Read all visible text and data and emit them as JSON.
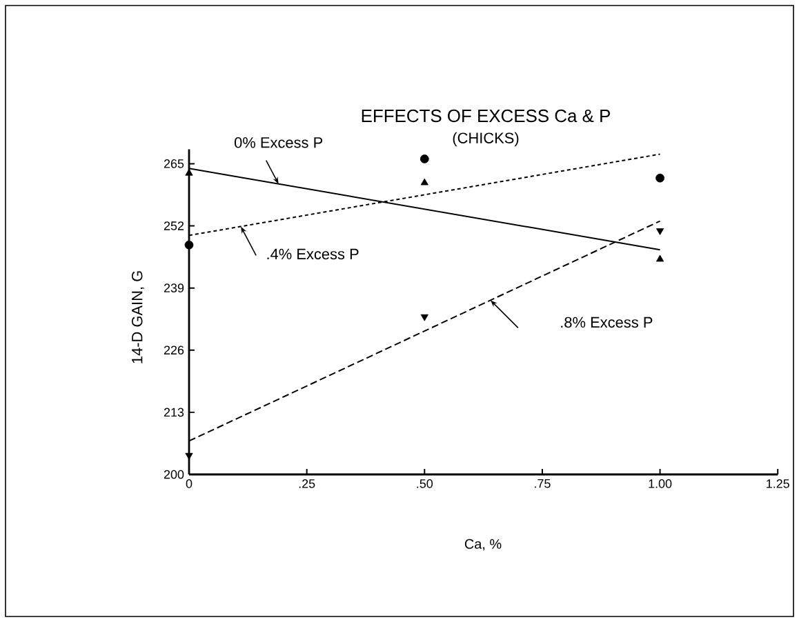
{
  "chart_data": {
    "type": "scatter",
    "title": "EFFECTS OF EXCESS Ca & P",
    "subtitle": "(CHICKS)",
    "xlabel": "Ca, %",
    "ylabel": "14-D GAIN, G",
    "xlim": [
      0,
      1.25
    ],
    "ylim": [
      200,
      268
    ],
    "xticks": [
      0,
      {
        "value": 0.25,
        "label": ".25"
      },
      {
        "value": 0.5,
        "label": ".50"
      },
      {
        "value": 0.75,
        "label": ".75"
      },
      {
        "value": 1,
        "label": "1.00"
      },
      {
        "value": 1.25,
        "label": "1.25"
      }
    ],
    "yticks": [
      200,
      213,
      226,
      239,
      252,
      265
    ],
    "series": [
      {
        "type": "scatter",
        "marker": "triangle",
        "color": "#000000",
        "x": [
          0,
          0.5,
          1
        ],
        "values": [
          263,
          261,
          245
        ]
      },
      {
        "type": "scatter",
        "marker": "circle",
        "color": "#000000",
        "x": [
          0,
          0.5,
          1
        ],
        "values": [
          248,
          266,
          262
        ]
      },
      {
        "type": "scatter",
        "marker": "triangle-down",
        "color": "#000000",
        "x": [
          0,
          0.5,
          1
        ],
        "values": [
          204,
          233,
          251
        ]
      },
      {
        "type": "line",
        "name": "0% Excess P",
        "line_style": "solid",
        "color": "#000000",
        "x": [
          0,
          1
        ],
        "values": [
          264,
          247
        ]
      },
      {
        "type": "line",
        "name": ".4% Excess P",
        "line_style": "dotted",
        "color": "#000000",
        "x": [
          0,
          1
        ],
        "values": [
          250,
          267
        ]
      },
      {
        "type": "line",
        "name": ".8% Excess P",
        "line_style": "dashed",
        "color": "#000000",
        "x": [
          0,
          1
        ],
        "values": [
          207,
          253
        ]
      }
    ]
  }
}
